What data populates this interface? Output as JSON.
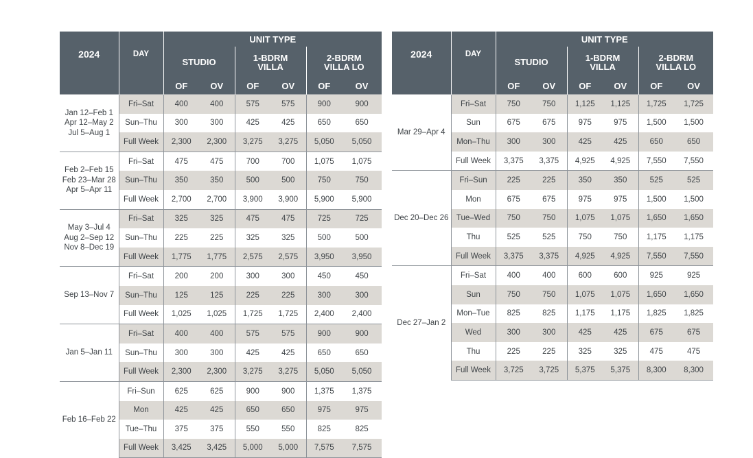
{
  "header": {
    "year": "2024",
    "day": "DAY",
    "unit_type": "UNIT TYPE",
    "units": [
      {
        "l1": "STUDIO",
        "l2": ""
      },
      {
        "l1": "1-BDRM",
        "l2": "VILLA"
      },
      {
        "l1": "2-BDRM",
        "l2": "VILLA LO"
      }
    ],
    "of": "OF",
    "ov": "OV"
  },
  "tables": [
    {
      "groups": [
        {
          "dates": [
            "Jan 12–Feb 1",
            "Apr 12–May 2",
            "Jul 5–Aug 1"
          ],
          "rows": [
            {
              "day": "Fri–Sat",
              "vals": [
                "400",
                "400",
                "575",
                "575",
                "900",
                "900"
              ]
            },
            {
              "day": "Sun–Thu",
              "vals": [
                "300",
                "300",
                "425",
                "425",
                "650",
                "650"
              ]
            },
            {
              "day": "Full Week",
              "vals": [
                "2,300",
                "2,300",
                "3,275",
                "3,275",
                "5,050",
                "5,050"
              ]
            }
          ]
        },
        {
          "dates": [
            "Feb 2–Feb 15",
            "Feb 23–Mar 28",
            "Apr 5–Apr 11"
          ],
          "rows": [
            {
              "day": "Fri–Sat",
              "vals": [
                "475",
                "475",
                "700",
                "700",
                "1,075",
                "1,075"
              ]
            },
            {
              "day": "Sun–Thu",
              "vals": [
                "350",
                "350",
                "500",
                "500",
                "750",
                "750"
              ]
            },
            {
              "day": "Full Week",
              "vals": [
                "2,700",
                "2,700",
                "3,900",
                "3,900",
                "5,900",
                "5,900"
              ]
            }
          ]
        },
        {
          "dates": [
            "May 3–Jul 4",
            "Aug 2–Sep 12",
            "Nov 8–Dec 19"
          ],
          "rows": [
            {
              "day": "Fri–Sat",
              "vals": [
                "325",
                "325",
                "475",
                "475",
                "725",
                "725"
              ]
            },
            {
              "day": "Sun–Thu",
              "vals": [
                "225",
                "225",
                "325",
                "325",
                "500",
                "500"
              ]
            },
            {
              "day": "Full Week",
              "vals": [
                "1,775",
                "1,775",
                "2,575",
                "2,575",
                "3,950",
                "3,950"
              ]
            }
          ]
        },
        {
          "dates": [
            "Sep 13–Nov 7"
          ],
          "rows": [
            {
              "day": "Fri–Sat",
              "vals": [
                "200",
                "200",
                "300",
                "300",
                "450",
                "450"
              ]
            },
            {
              "day": "Sun–Thu",
              "vals": [
                "125",
                "125",
                "225",
                "225",
                "300",
                "300"
              ]
            },
            {
              "day": "Full Week",
              "vals": [
                "1,025",
                "1,025",
                "1,725",
                "1,725",
                "2,400",
                "2,400"
              ]
            }
          ]
        },
        {
          "dates": [
            "Jan 5–Jan 11"
          ],
          "rows": [
            {
              "day": "Fri–Sat",
              "vals": [
                "400",
                "400",
                "575",
                "575",
                "900",
                "900"
              ]
            },
            {
              "day": "Sun–Thu",
              "vals": [
                "300",
                "300",
                "425",
                "425",
                "650",
                "650"
              ]
            },
            {
              "day": "Full Week",
              "vals": [
                "2,300",
                "2,300",
                "3,275",
                "3,275",
                "5,050",
                "5,050"
              ]
            }
          ]
        },
        {
          "dates": [
            "Feb 16–Feb 22"
          ],
          "rows": [
            {
              "day": "Fri–Sun",
              "vals": [
                "625",
                "625",
                "900",
                "900",
                "1,375",
                "1,375"
              ]
            },
            {
              "day": "Mon",
              "vals": [
                "425",
                "425",
                "650",
                "650",
                "975",
                "975"
              ]
            },
            {
              "day": "Tue–Thu",
              "vals": [
                "375",
                "375",
                "550",
                "550",
                "825",
                "825"
              ]
            },
            {
              "day": "Full Week",
              "vals": [
                "3,425",
                "3,425",
                "5,000",
                "5,000",
                "7,575",
                "7,575"
              ]
            }
          ]
        }
      ]
    },
    {
      "groups": [
        {
          "dates": [
            "Mar 29–Apr 4"
          ],
          "rows": [
            {
              "day": "Fri–Sat",
              "vals": [
                "750",
                "750",
                "1,125",
                "1,125",
                "1,725",
                "1,725"
              ]
            },
            {
              "day": "Sun",
              "vals": [
                "675",
                "675",
                "975",
                "975",
                "1,500",
                "1,500"
              ]
            },
            {
              "day": "Mon–Thu",
              "vals": [
                "300",
                "300",
                "425",
                "425",
                "650",
                "650"
              ]
            },
            {
              "day": "Full Week",
              "vals": [
                "3,375",
                "3,375",
                "4,925",
                "4,925",
                "7,550",
                "7,550"
              ]
            }
          ]
        },
        {
          "dates": [
            "Dec 20–Dec 26"
          ],
          "rows": [
            {
              "day": "Fri–Sun",
              "vals": [
                "225",
                "225",
                "350",
                "350",
                "525",
                "525"
              ]
            },
            {
              "day": "Mon",
              "vals": [
                "675",
                "675",
                "975",
                "975",
                "1,500",
                "1,500"
              ]
            },
            {
              "day": "Tue–Wed",
              "vals": [
                "750",
                "750",
                "1,075",
                "1,075",
                "1,650",
                "1,650"
              ]
            },
            {
              "day": "Thu",
              "vals": [
                "525",
                "525",
                "750",
                "750",
                "1,175",
                "1,175"
              ]
            },
            {
              "day": "Full Week",
              "vals": [
                "3,375",
                "3,375",
                "4,925",
                "4,925",
                "7,550",
                "7,550"
              ]
            }
          ]
        },
        {
          "dates": [
            "Dec 27–Jan 2"
          ],
          "rows": [
            {
              "day": "Fri–Sat",
              "vals": [
                "400",
                "400",
                "600",
                "600",
                "925",
                "925"
              ]
            },
            {
              "day": "Sun",
              "vals": [
                "750",
                "750",
                "1,075",
                "1,075",
                "1,650",
                "1,650"
              ]
            },
            {
              "day": "Mon–Tue",
              "vals": [
                "825",
                "825",
                "1,175",
                "1,175",
                "1,825",
                "1,825"
              ]
            },
            {
              "day": "Wed",
              "vals": [
                "300",
                "300",
                "425",
                "425",
                "675",
                "675"
              ]
            },
            {
              "day": "Thu",
              "vals": [
                "225",
                "225",
                "325",
                "325",
                "475",
                "475"
              ]
            },
            {
              "day": "Full Week",
              "vals": [
                "3,725",
                "3,725",
                "5,375",
                "5,375",
                "8,300",
                "8,300"
              ]
            }
          ]
        }
      ]
    }
  ],
  "colors": {
    "header_bg": "#56616a",
    "header_text": "#ffffff",
    "shade_row": "#dcd9d4",
    "rule": "#8d9399",
    "text": "#3e4347"
  }
}
